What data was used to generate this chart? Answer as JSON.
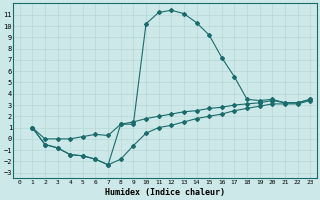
{
  "xlabel": "Humidex (Indice chaleur)",
  "bg_color": "#cce8e8",
  "grid_color": "#b8d8d8",
  "line_color": "#1a6b6b",
  "xlim": [
    -0.5,
    23.5
  ],
  "ylim": [
    -3.5,
    12
  ],
  "xticks": [
    0,
    1,
    2,
    3,
    4,
    5,
    6,
    7,
    8,
    9,
    10,
    11,
    12,
    13,
    14,
    15,
    16,
    17,
    18,
    19,
    20,
    21,
    22,
    23
  ],
  "yticks": [
    -3,
    -2,
    -1,
    0,
    1,
    2,
    3,
    4,
    5,
    6,
    7,
    8,
    9,
    10,
    11
  ],
  "curve_main_x": [
    1,
    2,
    3,
    4,
    5,
    6,
    7,
    8,
    9,
    10,
    11,
    12,
    13,
    14,
    15,
    16,
    17,
    18,
    19,
    20,
    21,
    22,
    23
  ],
  "curve_main_y": [
    1,
    -0.5,
    -0.8,
    -1.4,
    -1.5,
    -1.8,
    -2.3,
    1.3,
    1.3,
    10.2,
    11.2,
    11.4,
    11.1,
    10.3,
    9.2,
    7.2,
    5.5,
    3.5,
    3.4,
    3.5,
    3.2,
    3.2,
    3.5
  ],
  "curve_mid_x": [
    1,
    2,
    3,
    4,
    5,
    6,
    7,
    8,
    9,
    10,
    11,
    12,
    13,
    14,
    15,
    16,
    17,
    18,
    19,
    20,
    21,
    22,
    23
  ],
  "curve_mid_y": [
    1,
    0.0,
    0.0,
    0.0,
    0.2,
    0.4,
    0.3,
    1.3,
    1.5,
    1.8,
    2.0,
    2.2,
    2.4,
    2.5,
    2.7,
    2.8,
    3.0,
    3.1,
    3.2,
    3.4,
    3.2,
    3.2,
    3.5
  ],
  "curve_low_x": [
    1,
    2,
    3,
    4,
    5,
    6,
    7,
    8,
    9,
    10,
    11,
    12,
    13,
    14,
    15,
    16,
    17,
    18,
    19,
    20,
    21,
    22,
    23
  ],
  "curve_low_y": [
    1,
    -0.5,
    -0.8,
    -1.4,
    -1.5,
    -1.8,
    -2.3,
    -1.8,
    -0.6,
    0.5,
    1.0,
    1.2,
    1.5,
    1.8,
    2.0,
    2.2,
    2.5,
    2.7,
    2.9,
    3.1,
    3.1,
    3.1,
    3.4
  ]
}
